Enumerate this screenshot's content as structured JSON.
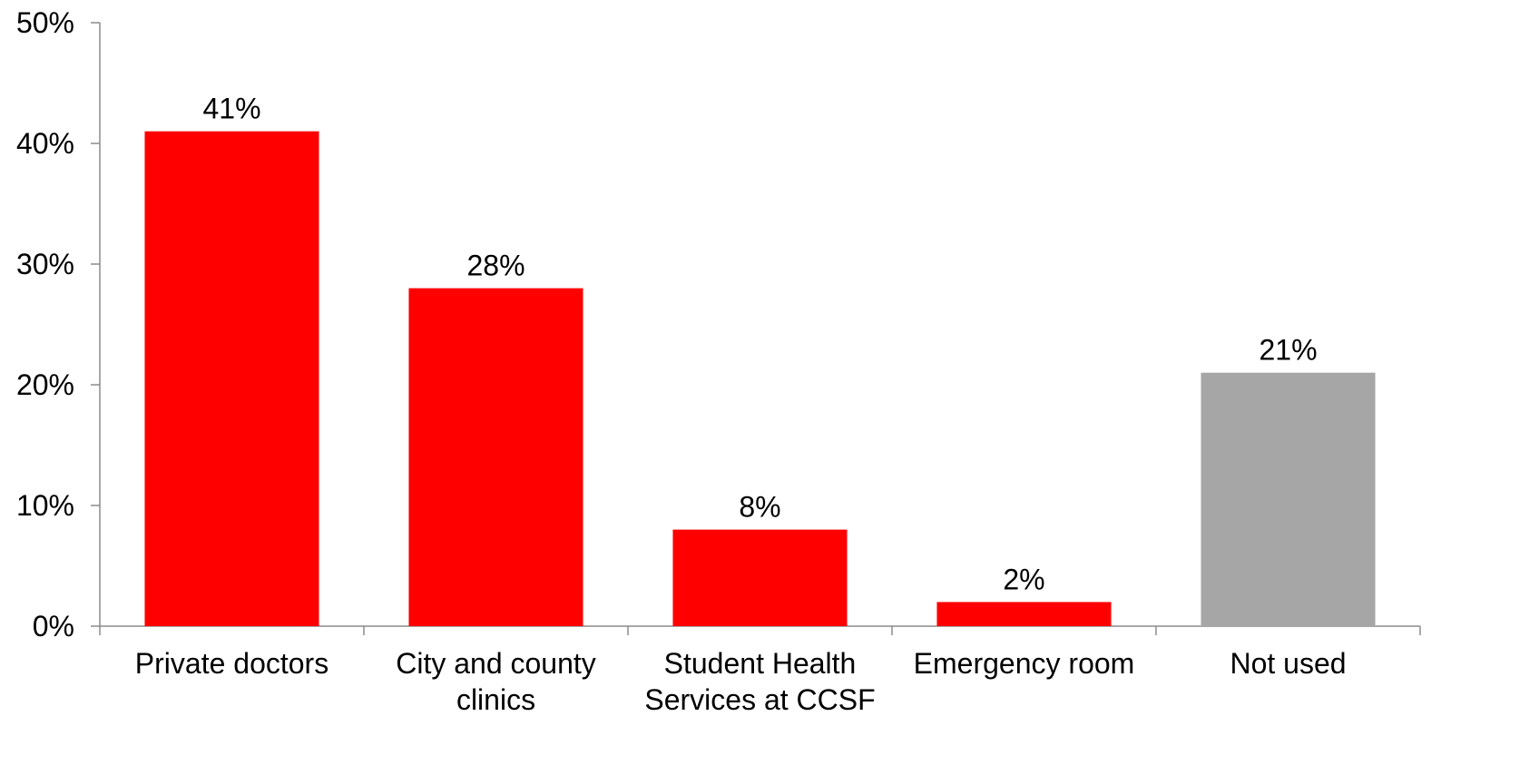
{
  "chart_data": {
    "type": "bar",
    "categories": [
      [
        "Private doctors"
      ],
      [
        "City and county",
        "clinics"
      ],
      [
        "Student Health",
        "Services at CCSF"
      ],
      [
        "Emergency room"
      ],
      [
        "Not used"
      ]
    ],
    "values": [
      41,
      28,
      8,
      2,
      21
    ],
    "value_labels": [
      "41%",
      "28%",
      "8%",
      "2%",
      "21%"
    ],
    "bar_colors": [
      "#ff0000",
      "#ff0000",
      "#ff0000",
      "#ff0000",
      "#a6a6a6"
    ],
    "title": "",
    "xlabel": "",
    "ylabel": "",
    "ylim": [
      0,
      50
    ],
    "y_ticks": [
      0,
      10,
      20,
      30,
      40,
      50
    ],
    "y_tick_labels": [
      "0%",
      "10%",
      "20%",
      "30%",
      "40%",
      "50%"
    ],
    "grid": false,
    "legend": "none"
  }
}
